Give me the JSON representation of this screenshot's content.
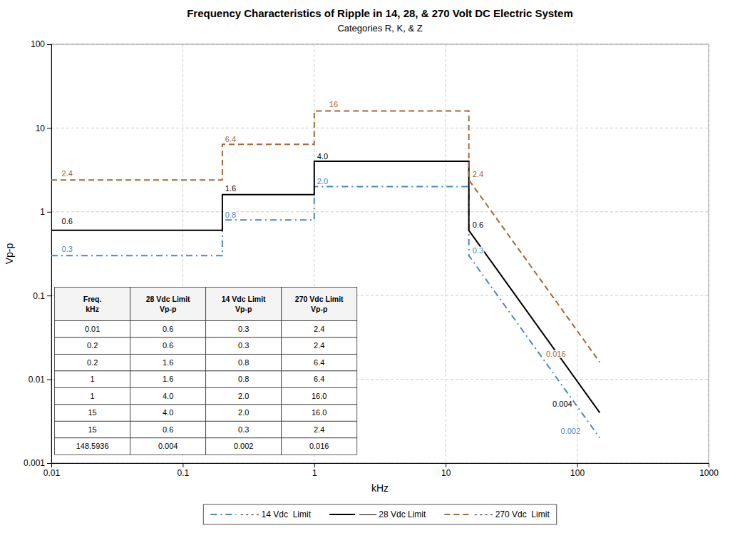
{
  "chart_data": {
    "type": "line",
    "title": "Frequency Characteristics of Ripple in 14, 28, & 270 Volt DC Electric System",
    "subtitle": "Categories R, K, & Z",
    "xlabel": "kHz",
    "ylabel": "Vp-p",
    "log": true,
    "grid": true,
    "legend": "bottom",
    "xlim": [
      0.01,
      1000
    ],
    "ylim": [
      0.001,
      100
    ],
    "xticks": [
      0.01,
      0.1,
      1,
      10,
      100,
      1000
    ],
    "yticks": [
      0.001,
      0.01,
      0.1,
      1,
      10,
      100
    ],
    "x": [
      0.01,
      0.2,
      0.2,
      1.0,
      1.0,
      15.0,
      15.0,
      148.5936
    ],
    "series": [
      {
        "name": "- - - - 14 Vdc  Limit",
        "color": "#4488cc",
        "line_style": "dashdot",
        "values": [
          0.3,
          0.3,
          0.8,
          0.8,
          2.0,
          2.0,
          0.3,
          0.002
        ]
      },
      {
        "name": "—— 28 Vdc Limit",
        "color": "#000000",
        "line_style": "solid",
        "values": [
          0.6,
          0.6,
          1.6,
          1.6,
          4.0,
          4.0,
          0.6,
          0.004
        ]
      },
      {
        "name": "- - - - 270 Vdc  Limit",
        "color": "#aa6633",
        "line_style": "dashed",
        "values": [
          2.4,
          2.4,
          6.4,
          6.4,
          16.0,
          16.0,
          2.4,
          0.016
        ]
      }
    ],
    "annotations": [
      {
        "text": "0.6",
        "x": 0.012,
        "y": 0.68,
        "color": "#000000"
      },
      {
        "text": "0.3",
        "x": 0.012,
        "y": 0.32,
        "color": "#4488cc"
      },
      {
        "text": "2.4",
        "x": 0.012,
        "y": 2.55,
        "color": "#aa6633"
      },
      {
        "text": "1.6",
        "x": 0.21,
        "y": 1.68,
        "color": "#000000"
      },
      {
        "text": "0.8",
        "x": 0.21,
        "y": 0.82,
        "color": "#4488cc"
      },
      {
        "text": "6.4",
        "x": 0.21,
        "y": 6.6,
        "color": "#aa6633"
      },
      {
        "text": "4.0",
        "x": 1.05,
        "y": 4.1,
        "color": "#000000"
      },
      {
        "text": "2.0",
        "x": 1.05,
        "y": 2.05,
        "color": "#4488cc"
      },
      {
        "text": "16",
        "x": 1.3,
        "y": 17.0,
        "color": "#aa6633"
      },
      {
        "text": "0.6",
        "x": 16.0,
        "y": 0.62,
        "color": "#000000"
      },
      {
        "text": "0.3",
        "x": 16.0,
        "y": 0.31,
        "color": "#4488cc"
      },
      {
        "text": "2.4",
        "x": 16.0,
        "y": 2.5,
        "color": "#aa6633"
      },
      {
        "text": "0.004",
        "x": 65.0,
        "y": 0.0045,
        "color": "#000000"
      },
      {
        "text": "0.002",
        "x": 75.0,
        "y": 0.00215,
        "color": "#4488cc"
      },
      {
        "text": "0.016",
        "x": 58.0,
        "y": 0.018,
        "color": "#aa6633"
      }
    ],
    "table": {
      "columns": [
        [
          "Freq.",
          "kHz"
        ],
        [
          "28 Vdc Limit",
          "Vp-p"
        ],
        [
          "14 Vdc Limit",
          "Vp-p"
        ],
        [
          "270 Vdc Limit",
          "Vp-p"
        ]
      ],
      "rows": [
        [
          "0.01",
          "0.6",
          "0.3",
          "2.4"
        ],
        [
          "0.2",
          "0.6",
          "0.3",
          "2.4"
        ],
        [
          "0.2",
          "1.6",
          "0.8",
          "6.4"
        ],
        [
          "1",
          "1.6",
          "0.8",
          "6.4"
        ],
        [
          "1",
          "4.0",
          "2.0",
          "16.0"
        ],
        [
          "15",
          "4.0",
          "2.0",
          "16.0"
        ],
        [
          "15",
          "0.6",
          "0.3",
          "2.4"
        ],
        [
          "148.5936",
          "0.004",
          "0.002",
          "0.016"
        ]
      ]
    }
  }
}
